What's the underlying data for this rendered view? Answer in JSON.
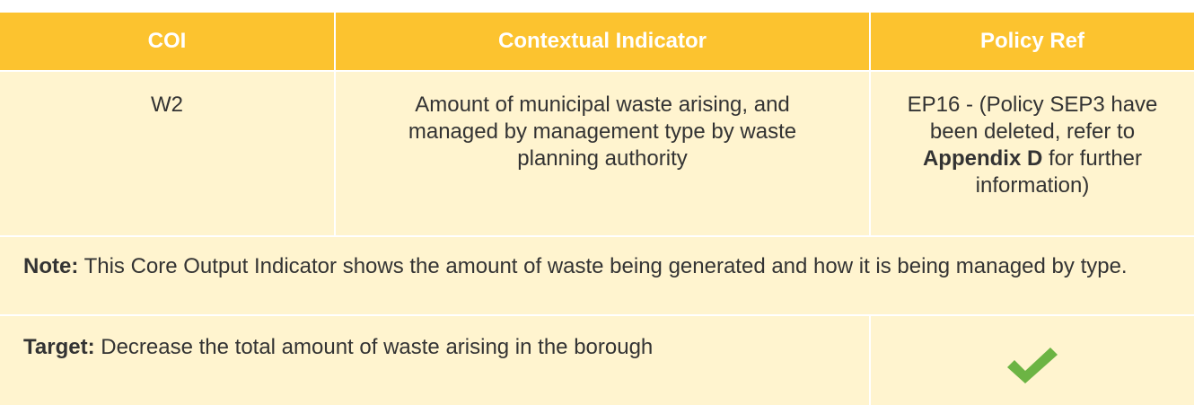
{
  "table": {
    "header": [
      "COI",
      "Contextual Indicator",
      "Policy Ref"
    ],
    "row": {
      "coi": "W2",
      "indicator": "Amount of municipal waste arising, and managed by management type by waste planning authority",
      "policy_ref": [
        "EP16 - (Policy SEP3 have been deleted, refer to ",
        "Appendix D",
        " for further information)"
      ]
    },
    "note": {
      "label": "Note:",
      "text": " This Core Output Indicator shows the amount of waste being generated and how it is being managed by type."
    },
    "target": {
      "label": "Target:",
      "text": " Decrease the total amount of waste arising in the borough"
    }
  }
}
